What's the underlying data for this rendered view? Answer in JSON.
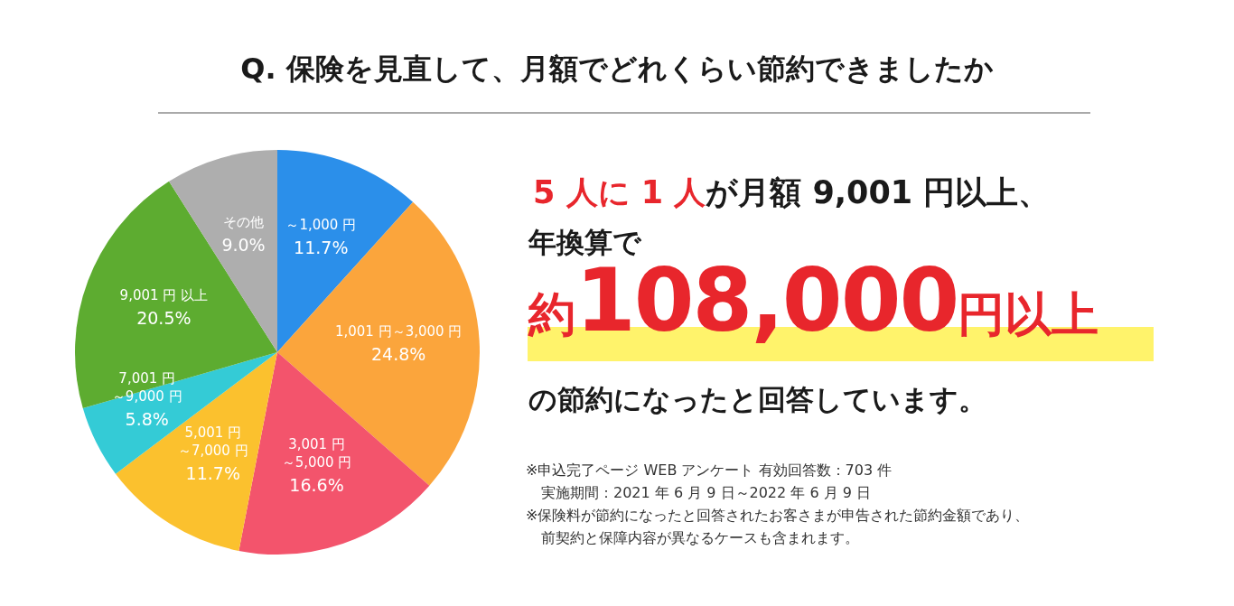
{
  "chart_data": {
    "type": "pie",
    "title": "Q. 保険を見直して、月額でどれくらい節約できましたか",
    "categories": [
      "～1,000 円",
      "1,001 円～3,000 円",
      "3,001 円～5,000 円",
      "5,001 円～7,000 円",
      "7,001 円～9,000 円",
      "9,001 円 以上",
      "その他"
    ],
    "values": [
      11.7,
      24.8,
      16.6,
      11.7,
      5.8,
      20.5,
      9.0
    ],
    "value_labels": [
      "11.7%",
      "24.8%",
      "16.6%",
      "11.7%",
      "5.8%",
      "20.5%",
      "9.0%"
    ],
    "colors": [
      "#2b8fea",
      "#fba53c",
      "#f3546c",
      "#fbc12e",
      "#34cbd6",
      "#5dac30",
      "#aeaeae"
    ],
    "annotations": [
      "5 人に 1 人",
      "が月額 9,001 円以上、",
      "年換算で",
      "約",
      "108,000",
      "円以上",
      "の節約になったと回答しています。",
      "※申込完了ページ WEB アンケート 有効回答数：703 件",
      "実施期間：2021 年 6 月 9 日～2022 年 6 月 9 日",
      "※保険料が節約になったと回答されたお客さまが申告された節約金額であり、",
      "前契約と保障内容が異なるケースも含まれます。"
    ]
  }
}
